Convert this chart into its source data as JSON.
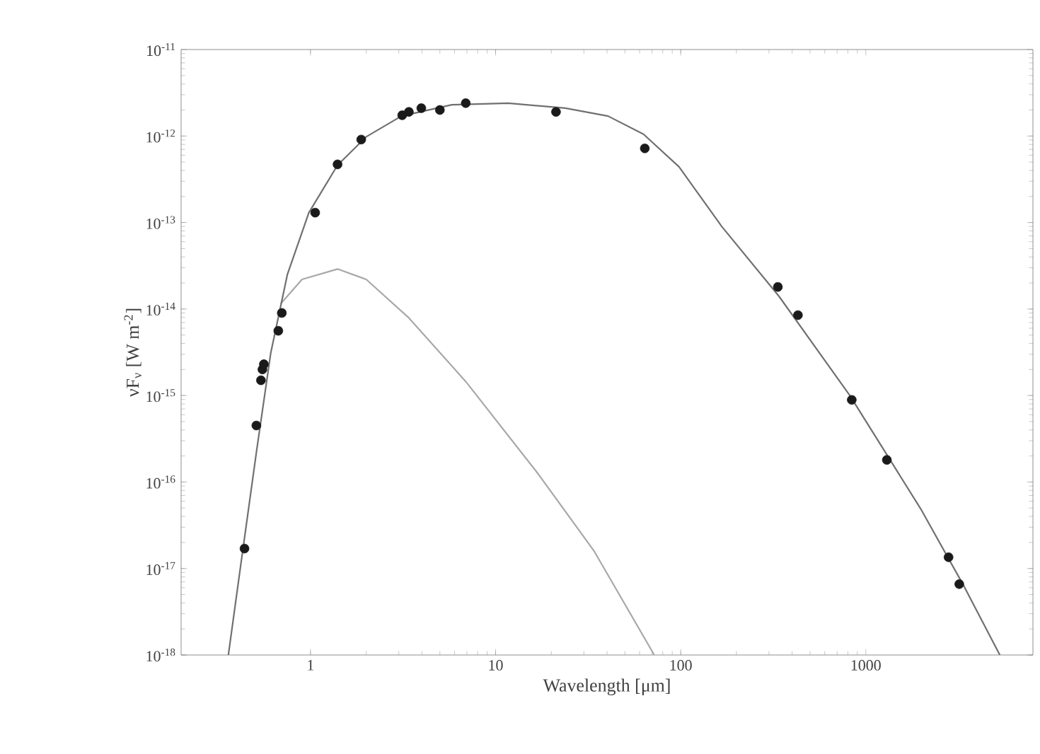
{
  "chart_data": {
    "type": "scatter",
    "xlabel": "Wavelength [μm]",
    "ylabel": "νF$_{ν}$ [W m$^{-2}$]",
    "log": "xy",
    "marker": "circle",
    "xlim": [
      0.2,
      8000
    ],
    "ylim": [
      1e-18,
      1e-11
    ],
    "xticks": [
      1,
      10,
      100,
      1000
    ],
    "yticks": [
      {
        "value": 1e-18,
        "label": "10$^{-18}$"
      },
      {
        "value": 1e-17,
        "label": "10$^{-17}$"
      },
      {
        "value": 1e-16,
        "label": "10$^{-16}$"
      },
      {
        "value": 1e-15,
        "label": "10$^{-15}$"
      },
      {
        "value": 1e-14,
        "label": "10$^{-14}$"
      },
      {
        "value": 1e-13,
        "label": "10$^{-13}$"
      },
      {
        "value": 1e-12,
        "label": "10$^{-12}$"
      },
      {
        "value": 1e-11,
        "label": "10$^{-11}$"
      }
    ],
    "series": [
      {
        "type": "line",
        "marker": "none",
        "color": "#a8a8a8",
        "x": [
          0.69,
          0.9,
          1.4,
          2.0,
          3.4,
          6.9,
          16.7,
          34,
          72
        ],
        "values": [
          1.15e-14,
          2.2e-14,
          2.9e-14,
          2.2e-14,
          7.9e-15,
          1.45e-15,
          1.3e-16,
          1.6e-17,
          1e-18
        ]
      },
      {
        "type": "line",
        "marker": "none",
        "color": "#707070",
        "x": [
          0.36,
          0.42,
          0.51,
          0.61,
          0.75,
          0.98,
          1.4,
          2.0,
          3.1,
          5.8,
          11.7,
          23.8,
          40.5,
          63,
          98,
          166,
          340,
          820,
          1980,
          3400,
          5300
        ],
        "values": [
          1e-18,
          1.1e-17,
          2.2e-16,
          3.1e-15,
          2.5e-14,
          1.3e-13,
          4.6e-13,
          9.8e-13,
          1.7e-12,
          2.3e-12,
          2.4e-12,
          2.1e-12,
          1.7e-12,
          1.05e-12,
          4.4e-13,
          9.1e-14,
          1.4e-14,
          1e-15,
          4.9e-17,
          6.2e-18,
          1e-18
        ]
      },
      {
        "color": "#1a1a1a",
        "x": [
          0.44,
          0.51,
          0.54,
          0.55,
          0.56,
          0.67,
          0.7,
          1.06,
          1.4,
          1.88,
          3.13,
          3.4,
          3.97,
          5.0,
          6.9,
          21.2,
          64,
          335,
          430,
          840,
          1300,
          2800,
          3200
        ],
        "values": [
          1.7e-17,
          4.5e-16,
          1.5e-15,
          2e-15,
          2.3e-15,
          5.6e-15,
          9e-15,
          1.3e-13,
          4.7e-13,
          9.1e-13,
          1.74e-12,
          1.9e-12,
          2.1e-12,
          2e-12,
          2.4e-12,
          1.9e-12,
          7.2e-13,
          1.8e-14,
          8.5e-15,
          8.9e-16,
          1.8e-16,
          1.35e-17,
          6.6e-18
        ]
      }
    ]
  }
}
